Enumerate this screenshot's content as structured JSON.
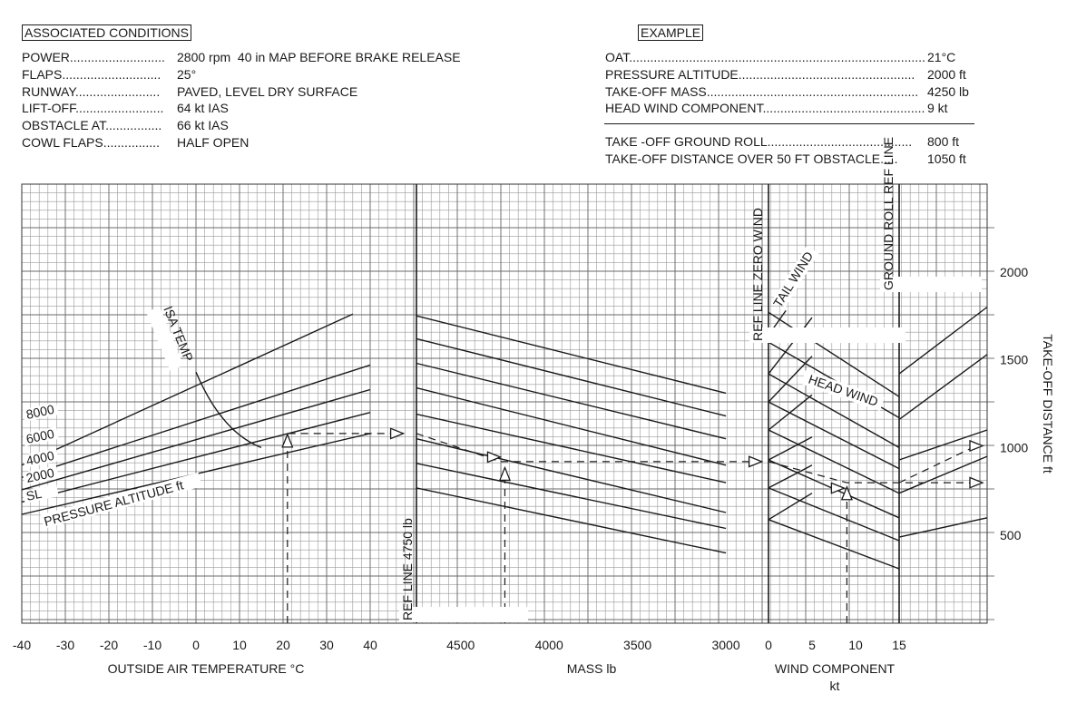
{
  "conditions": {
    "heading": "ASSOCIATED CONDITIONS",
    "rows": [
      {
        "label": "POWER",
        "dots": "...........................",
        "value": "2800 rpm  40 in MAP BEFORE BRAKE RELEASE"
      },
      {
        "label": "FLAPS",
        "dots": "............................",
        "value": "25°"
      },
      {
        "label": "RUNWAY",
        "dots": "........................",
        "value": "PAVED, LEVEL DRY SURFACE"
      },
      {
        "label": "LIFT-OFF",
        "dots": ".........................",
        "value": "64 kt IAS"
      },
      {
        "label": "OBSTACLE AT",
        "dots": "................",
        "value": "66 kt IAS"
      },
      {
        "label": "COWL FLAPS",
        "dots": "................",
        "value": "HALF OPEN"
      }
    ]
  },
  "example": {
    "heading": "EXAMPLE",
    "rows": [
      {
        "label": "OAT",
        "dots": "..........................................................................................",
        "value": "21°C"
      },
      {
        "label": "PRESSURE ALTITUDE",
        "dots": "..................................................",
        "value": "2000 ft"
      },
      {
        "label": "TAKE-OFF MASS",
        "dots": "............................................................",
        "value": "4250 lb"
      },
      {
        "label": "HEAD WIND COMPONENT",
        "dots": "..............................................",
        "value": "9 kt"
      }
    ],
    "results": [
      {
        "label": "TAKE -OFF GROUND ROLL",
        "dots": ".........................................",
        "value": "800 ft"
      },
      {
        "label": "TAKE-OFF DISTANCE OVER 50 FT OBSTACLE",
        "dots": ".....",
        "value": "1050 ft"
      }
    ]
  },
  "chart_data": {
    "type": "line",
    "panels": {
      "temperature": {
        "xlabel": "OUTSIDE AIR TEMPERATURE  °C",
        "xlim": [
          -40,
          50
        ],
        "ticks": [
          "-40",
          "-30",
          "-20",
          "-10",
          "0",
          "10",
          "20",
          "30",
          "40"
        ],
        "curve_label": "PRESSURE ALTITUDE  ft",
        "altitude_labels": [
          "8000",
          "6000",
          "4000",
          "2000",
          "SL"
        ],
        "isa_label": "ISA TEMP",
        "altitude_lines": [
          {
            "name": "SL",
            "points": [
              [
                -40,
                620
              ],
              [
                40,
                1080
              ]
            ]
          },
          {
            "name": "2000",
            "points": [
              [
                -40,
                690
              ],
              [
                40,
                1200
              ]
            ]
          },
          {
            "name": "4000",
            "points": [
              [
                -40,
                760
              ],
              [
                40,
                1330
              ]
            ]
          },
          {
            "name": "6000",
            "points": [
              [
                -40,
                830
              ],
              [
                40,
                1470
              ]
            ]
          },
          {
            "name": "8000",
            "points": [
              [
                -40,
                900
              ],
              [
                36,
                1760
              ]
            ]
          }
        ],
        "isa_curve": [
          [
            0,
            1430
          ],
          [
            10,
            1140
          ],
          [
            15,
            1000
          ]
        ]
      },
      "mass": {
        "xlabel": "MASS  lb",
        "xlim": [
          4750,
          3000
        ],
        "ticks": [
          "4500",
          "4000",
          "3500",
          "3000"
        ],
        "ref_label": "REF LINE  4750 lb",
        "guide_lines": [
          {
            "points": [
              [
                4750,
                1750
              ],
              [
                3000,
                1310
              ]
            ]
          },
          {
            "points": [
              [
                4750,
                1620
              ],
              [
                3000,
                1180
              ]
            ]
          },
          {
            "points": [
              [
                4750,
                1480
              ],
              [
                3000,
                1050
              ]
            ]
          },
          {
            "points": [
              [
                4750,
                1340
              ],
              [
                3000,
                900
              ]
            ]
          },
          {
            "points": [
              [
                4750,
                1190
              ],
              [
                3000,
                800
              ]
            ]
          },
          {
            "points": [
              [
                4750,
                1050
              ],
              [
                3000,
                630
              ]
            ]
          },
          {
            "points": [
              [
                4750,
                910
              ],
              [
                3000,
                540
              ]
            ]
          },
          {
            "points": [
              [
                4750,
                770
              ],
              [
                3000,
                400
              ]
            ]
          }
        ]
      },
      "wind": {
        "xlabel": "WIND COMPONENT",
        "xunit": "kt",
        "xlim": [
          -3,
          15
        ],
        "ticks": [
          "0",
          "5",
          "10",
          "15"
        ],
        "ref_label": "REF LINE  ZERO WIND",
        "tail_label": "TAIL WIND",
        "head_label": "HEAD WIND",
        "head_lines": [
          {
            "points": [
              [
                0,
                1770
              ],
              [
                15,
                1290
              ]
            ]
          },
          {
            "points": [
              [
                0,
                1600
              ],
              [
                15,
                1170
              ]
            ]
          },
          {
            "points": [
              [
                0,
                1420
              ],
              [
                15,
                1000
              ]
            ]
          },
          {
            "points": [
              [
                0,
                1260
              ],
              [
                15,
                880
              ]
            ]
          },
          {
            "points": [
              [
                0,
                1100
              ],
              [
                15,
                740
              ]
            ]
          },
          {
            "points": [
              [
                0,
                930
              ],
              [
                15,
                600
              ]
            ]
          },
          {
            "points": [
              [
                0,
                770
              ],
              [
                15,
                470
              ]
            ]
          },
          {
            "points": [
              [
                0,
                590
              ],
              [
                15,
                310
              ]
            ]
          }
        ],
        "tail_lines": [
          {
            "points": [
              [
                0,
                1640
              ],
              [
                2,
                1780
              ]
            ]
          },
          {
            "points": [
              [
                0,
                1420
              ],
              [
                5,
                1740
              ]
            ]
          },
          {
            "points": [
              [
                0,
                1260
              ],
              [
                5,
                1520
              ]
            ]
          },
          {
            "points": [
              [
                0,
                1100
              ],
              [
                5,
                1300
              ]
            ]
          },
          {
            "points": [
              [
                0,
                930
              ],
              [
                5,
                1060
              ]
            ]
          },
          {
            "points": [
              [
                0,
                770
              ],
              [
                5,
                900
              ]
            ]
          },
          {
            "points": [
              [
                0,
                590
              ],
              [
                5,
                740
              ]
            ]
          }
        ]
      },
      "distance": {
        "ref_label": "GROUND ROLL  REF LINE",
        "ylabel": "TAKE-OFF DISTANCE  ft",
        "ylim": [
          0,
          2500
        ],
        "yticks": [
          500,
          1000,
          1500,
          2000
        ],
        "lines": [
          {
            "points": [
              [
                15,
                1420
              ],
              [
                20,
                1800
              ]
            ]
          },
          {
            "points": [
              [
                15,
                1160
              ],
              [
                20,
                1530
              ]
            ]
          },
          {
            "points": [
              [
                15,
                930
              ],
              [
                20,
                1100
              ]
            ]
          },
          {
            "points": [
              [
                15,
                740
              ],
              [
                20,
                950
              ]
            ]
          },
          {
            "points": [
              [
                15,
                490
              ],
              [
                20,
                600
              ]
            ]
          }
        ]
      }
    },
    "example_path": {
      "oat_c": 21,
      "pressure_altitude_ft": 2000,
      "mass_lb": 4250,
      "head_wind_kt": 9,
      "ground_roll_ft": 800,
      "distance_50ft_ft": 1050
    }
  }
}
